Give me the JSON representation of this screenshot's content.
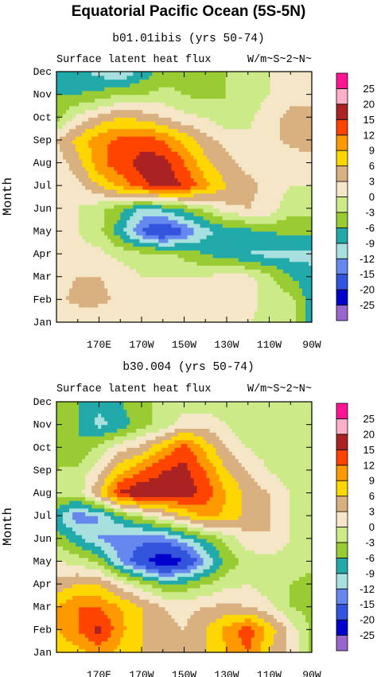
{
  "figure": {
    "title": "Equatorial Pacific Ocean (5S-5N)"
  },
  "colors": [
    "#9966cc",
    "#0000cc",
    "#3355dd",
    "#6688ee",
    "#a8e0e0",
    "#22aaaa",
    "#99cc33",
    "#cceb88",
    "#f5e6c8",
    "#d9b07f",
    "#ffd700",
    "#ff9900",
    "#ff4400",
    "#aa2222",
    "#ffb0c8",
    "#ff1493"
  ],
  "chart_data": [
    {
      "type": "heatmap",
      "subtitle": "b01.01ibis (yrs 50-74)",
      "variable": "Surface latent heat flux",
      "units": "W/m~S~2~N~",
      "ylabel": "Month",
      "x_ticks": [
        "170E",
        "170W",
        "150W",
        "130W",
        "110W",
        "90W"
      ],
      "y_ticks": [
        "Jan",
        "Feb",
        "Mar",
        "Apr",
        "May",
        "Jun",
        "Jul",
        "Aug",
        "Sep",
        "Oct",
        "Nov",
        "Dec"
      ],
      "levels": [
        "-25",
        "-20",
        "-15",
        "-12",
        "-9",
        "-6",
        "-3",
        "0",
        "3",
        "6",
        "9",
        "12",
        "15",
        "20",
        "25"
      ],
      "x": [
        150,
        160,
        170,
        180,
        190,
        200,
        210,
        220,
        230,
        240,
        250,
        260,
        270
      ],
      "months": [
        "Jan",
        "Feb",
        "Mar",
        "Apr",
        "May",
        "Jun",
        "Jul",
        "Aug",
        "Sep",
        "Oct",
        "Nov",
        "Dec"
      ],
      "values": [
        [
          0,
          0,
          0,
          0,
          0,
          1,
          0,
          0,
          0,
          0,
          -1,
          -1,
          -8
        ],
        [
          2,
          4,
          4,
          2,
          1,
          2,
          0,
          0,
          3,
          2,
          -2,
          -2,
          -8
        ],
        [
          2,
          3,
          3,
          2,
          0,
          0,
          0,
          0,
          2,
          1,
          -2,
          -6,
          -8
        ],
        [
          0,
          1,
          1,
          -1,
          -2,
          -2,
          -4,
          -6,
          -8,
          -9,
          -10,
          -10,
          -10
        ],
        [
          0,
          0,
          -2,
          -8,
          -15,
          -20,
          -15,
          -10,
          -8,
          -7,
          -6,
          -5,
          -5
        ],
        [
          0,
          0,
          -2,
          -5,
          -10,
          -8,
          -5,
          -2,
          2,
          3,
          2,
          -2,
          -2
        ],
        [
          0,
          2,
          6,
          10,
          14,
          17,
          15,
          10,
          6,
          4,
          2,
          0,
          0
        ],
        [
          1,
          5,
          11,
          14,
          16,
          17,
          12,
          7,
          4,
          2,
          1,
          0,
          1
        ],
        [
          3,
          7,
          11,
          13,
          14,
          12,
          8,
          4,
          2,
          1,
          2,
          4,
          6
        ],
        [
          -4,
          1,
          4,
          6,
          5,
          3,
          1,
          0,
          -2,
          -1,
          2,
          4,
          4
        ],
        [
          -6,
          -6,
          -5,
          -3,
          -3,
          -2,
          -3,
          -4,
          -3,
          -2,
          0,
          2,
          2
        ],
        [
          -6,
          -8,
          -10,
          -12,
          -8,
          -5,
          -4,
          -4,
          -3,
          -2,
          0,
          0,
          1
        ]
      ]
    },
    {
      "type": "heatmap",
      "subtitle": "b30.004 (yrs 50-74)",
      "variable": "Surface latent heat flux",
      "units": "W/m~S~2~N~",
      "ylabel": "Month",
      "x_ticks": [
        "170E",
        "170W",
        "150W",
        "130W",
        "110W",
        "90W"
      ],
      "y_ticks": [
        "Jan",
        "Feb",
        "Mar",
        "Apr",
        "May",
        "Jun",
        "Jul",
        "Aug",
        "Sep",
        "Oct",
        "Nov",
        "Dec"
      ],
      "levels": [
        "-25",
        "-20",
        "-15",
        "-12",
        "-9",
        "-6",
        "-3",
        "0",
        "3",
        "6",
        "9",
        "12",
        "15",
        "20",
        "25"
      ],
      "x": [
        150,
        160,
        170,
        180,
        190,
        200,
        210,
        220,
        230,
        240,
        250,
        260,
        270
      ],
      "months": [
        "Jan",
        "Feb",
        "Mar",
        "Apr",
        "May",
        "Jun",
        "Jul",
        "Aug",
        "Sep",
        "Oct",
        "Nov",
        "Dec"
      ],
      "values": [
        [
          6,
          8,
          10,
          8,
          6,
          4,
          3,
          6,
          9,
          12,
          6,
          2,
          -4
        ],
        [
          9,
          12,
          16,
          10,
          6,
          4,
          3,
          6,
          10,
          14,
          8,
          2,
          -4
        ],
        [
          9,
          12,
          12,
          9,
          6,
          3,
          2,
          3,
          4,
          3,
          1,
          -3,
          -4
        ],
        [
          4,
          6,
          6,
          2,
          -2,
          -5,
          -5,
          -3,
          -1,
          0,
          -2,
          -3,
          -4
        ],
        [
          0,
          -1,
          -4,
          -12,
          -18,
          -24,
          -20,
          -12,
          -5,
          -2,
          -1,
          -2,
          -2
        ],
        [
          -4,
          -8,
          -12,
          -14,
          -14,
          -14,
          -10,
          -6,
          -2,
          2,
          3,
          0,
          -2
        ],
        [
          -8,
          -14,
          -12,
          -6,
          -2,
          2,
          6,
          10,
          8,
          5,
          3,
          0,
          -2
        ],
        [
          -2,
          -2,
          6,
          16,
          18,
          17,
          17,
          14,
          9,
          5,
          3,
          0,
          -2
        ],
        [
          -3,
          -2,
          2,
          8,
          12,
          15,
          16,
          12,
          6,
          3,
          0,
          -2,
          -3
        ],
        [
          -5,
          -6,
          -2,
          2,
          4,
          9,
          14,
          8,
          3,
          0,
          -2,
          -3,
          -3
        ],
        [
          -3,
          -6,
          -10,
          -8,
          -4,
          -2,
          2,
          2,
          0,
          -3,
          -2,
          -3,
          -3
        ],
        [
          -4,
          -6,
          -8,
          -6,
          -4,
          -2,
          -2,
          -2,
          -2,
          -2,
          -3,
          -3,
          -3
        ]
      ]
    }
  ]
}
